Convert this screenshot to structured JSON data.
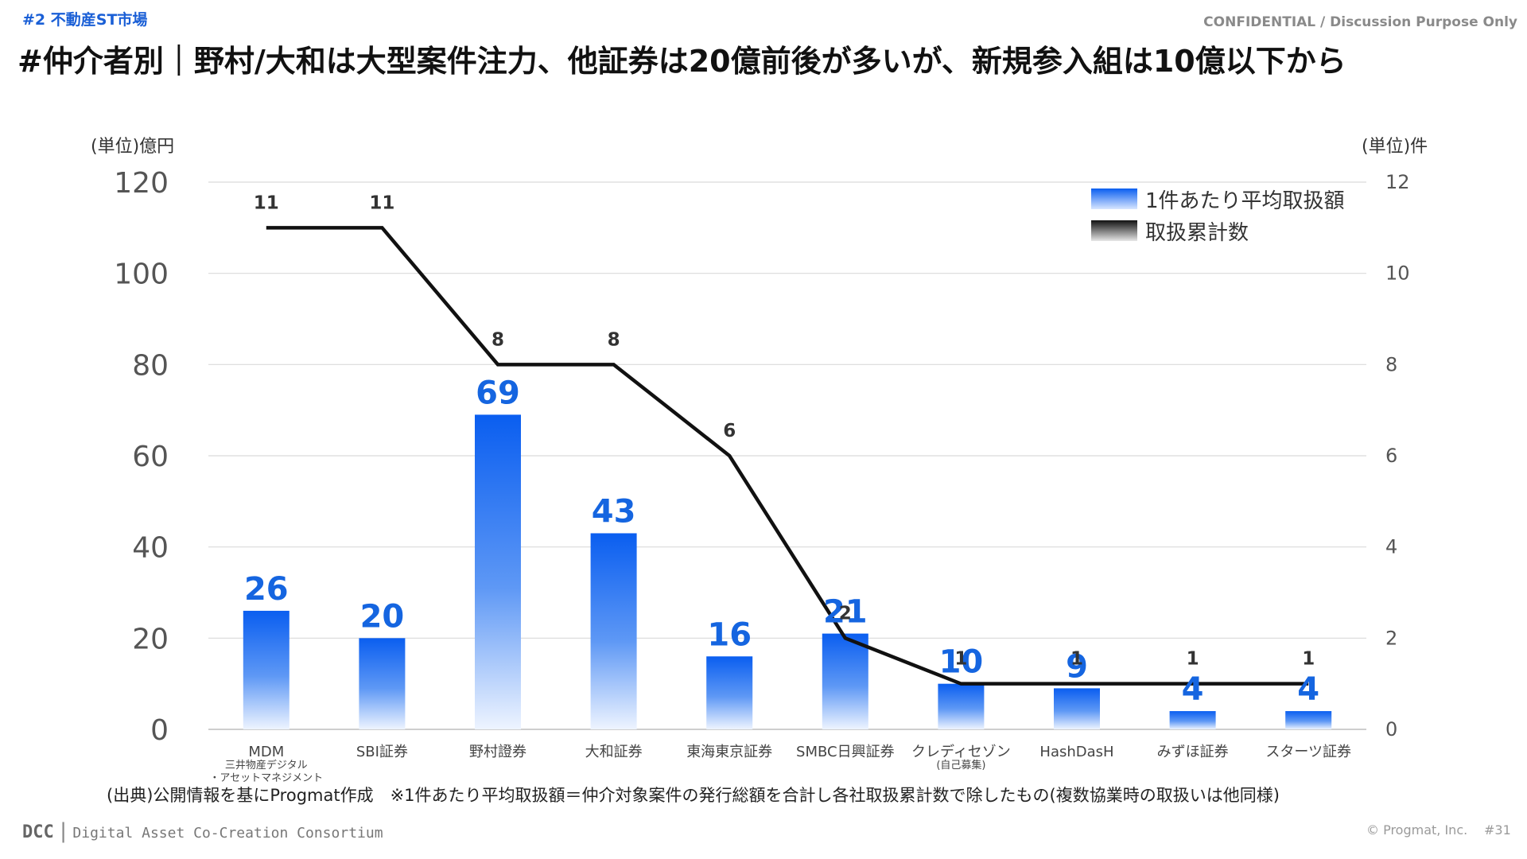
{
  "header": {
    "section_tag": "#2 不動産ST市場",
    "confidential": "CONFIDENTIAL / Discussion Purpose Only",
    "title": "#仲介者別｜野村/大和は大型案件注力、他証券は20億前後が多いが、新規参入組は10億以下から"
  },
  "units": {
    "left": "(単位)億円",
    "right": "(単位)件"
  },
  "colors": {
    "bar_top": "#0a5ef0",
    "bar_bottom": "#dfeaff",
    "line": "#111111",
    "bar_label": "#1565e0",
    "grid": "#d9d9d9"
  },
  "chart_data": {
    "type": "bar+line",
    "categories": [
      {
        "name": "MDM",
        "sub": [
          "三井物産デジタル",
          "・アセットマネジメント"
        ]
      },
      {
        "name": "SBI証券",
        "sub": []
      },
      {
        "name": "野村證券",
        "sub": []
      },
      {
        "name": "大和証券",
        "sub": []
      },
      {
        "name": "東海東京証券",
        "sub": []
      },
      {
        "name": "SMBC日興証券",
        "sub": []
      },
      {
        "name": "クレディセゾン",
        "sub": [
          "(自己募集)"
        ]
      },
      {
        "name": "HashDasH",
        "sub": []
      },
      {
        "name": "みずほ証券",
        "sub": []
      },
      {
        "name": "スターツ証券",
        "sub": []
      }
    ],
    "series": [
      {
        "name": "1件あたり平均取扱額",
        "type": "bar",
        "axis": "left",
        "values": [
          26,
          20,
          69,
          43,
          16,
          21,
          10,
          9,
          4,
          4
        ]
      },
      {
        "name": "取扱累計数",
        "type": "line",
        "axis": "right",
        "values": [
          11,
          11,
          8,
          8,
          6,
          2,
          1,
          1,
          1,
          1
        ]
      }
    ],
    "y_left": {
      "min": 0,
      "max": 120,
      "ticks": [
        0,
        20,
        40,
        60,
        80,
        100,
        120
      ]
    },
    "y_right": {
      "min": 0,
      "max": 12,
      "ticks": [
        0,
        2,
        4,
        6,
        8,
        10,
        12
      ]
    },
    "legend_position": "top-right",
    "grid": true
  },
  "source_note": "(出典)公開情報を基にProgmat作成　※1件あたり平均取扱額＝仲介対象案件の発行総額を合計し各社取扱累計数で除したもの(複数協業時の取扱いは他同様)",
  "footer": {
    "logo": "DCC",
    "consortium": "Digital Asset Co-Creation Consortium",
    "copyright": "© Progmat, Inc.",
    "page": "#31"
  }
}
